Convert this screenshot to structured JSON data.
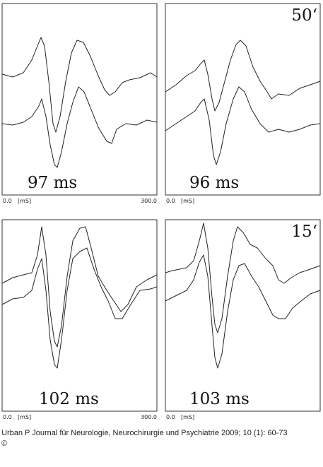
{
  "panels": [
    {
      "label": "97 ms",
      "axis": {
        "start": "0.0",
        "unit": "[mS]",
        "end": "300.0"
      }
    },
    {
      "label": "96 ms",
      "time": "50‘",
      "axis": {
        "start": "0.0",
        "unit": "[mS]"
      }
    },
    {
      "label": "102 ms",
      "axis": {
        "start": "0.0",
        "unit": "[mS]",
        "end": "300.0"
      }
    },
    {
      "label": "103 ms",
      "time": "15‘",
      "axis": {
        "start": "0.0",
        "unit": "[mS]"
      }
    }
  ],
  "caption": {
    "source": "Urban P Journal für Neurologie, Neurochirurgie und Psychiatrie 2009; 10 (1): 60-73",
    "copyright": "©"
  }
}
